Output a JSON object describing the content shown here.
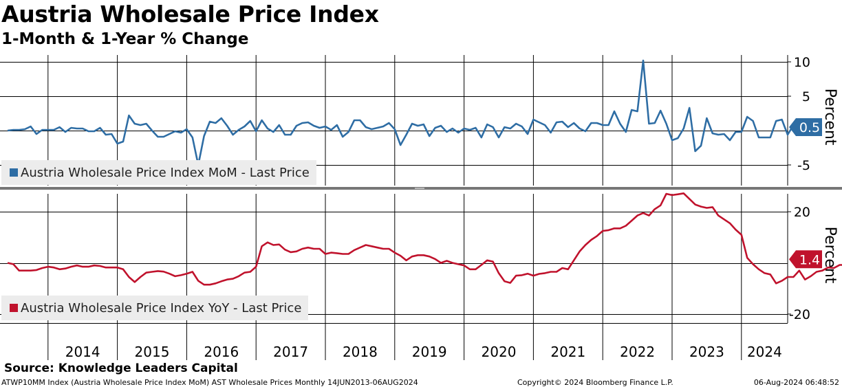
{
  "header": {
    "title": "Austria Wholesale Price Index",
    "subtitle": "1-Month & 1-Year % Change"
  },
  "footer": {
    "source": "Source: Knowledge Leaders Capital",
    "ticker_info": "ATWP10MM Index (Austria Wholesale Price Index MoM) AST Wholesale Prices  Monthly 14JUN2013-06AUG2024",
    "copyright": "Copyright© 2024 Bloomberg Finance L.P.",
    "timestamp": "06-Aug-2024 06:48:52"
  },
  "colors": {
    "mom": "#2e6da4",
    "yoy": "#c0122c",
    "legend_bg": "#ececec"
  },
  "chart_data": [
    {
      "type": "line",
      "name": "mom_panel",
      "series_name": "Austria Wholesale Price Index MoM - Last Price",
      "ylabel": "Percent",
      "ylim": [
        -8,
        11
      ],
      "yticks": [
        10,
        5,
        -5
      ],
      "last_value_label": "0.5",
      "start": "2013-06",
      "values": [
        0,
        0.1,
        0.1,
        0.2,
        0.6,
        -0.5,
        0.1,
        0.1,
        0.1,
        0.5,
        -0.2,
        0.4,
        0.3,
        0.3,
        -0.1,
        -0.1,
        0.4,
        -0.6,
        -0.5,
        -1.9,
        -1.6,
        2.2,
        1.0,
        0.8,
        1.0,
        0.0,
        -0.9,
        -0.9,
        -0.5,
        -0.1,
        -0.3,
        0.2,
        -1.0,
        -5.0,
        -0.8,
        1.3,
        1.1,
        1.8,
        0.7,
        -0.6,
        0.1,
        0.6,
        1.4,
        -0.1,
        1.5,
        0.3,
        -0.2,
        0.8,
        -0.6,
        -0.6,
        0.7,
        1.1,
        1.2,
        0.7,
        0.4,
        0.6,
        0.1,
        0.8,
        -0.9,
        -0.2,
        1.5,
        1.5,
        0.5,
        0.2,
        0.4,
        0.6,
        1.1,
        0.2,
        -2.1,
        -0.6,
        1.0,
        0.7,
        0.9,
        -0.8,
        0.4,
        0.7,
        -0.2,
        0.3,
        -0.3,
        0.3,
        0.1,
        0.4,
        -1.0,
        0.9,
        0.5,
        -1.0,
        0.5,
        0.3,
        1.0,
        0.6,
        -0.5,
        1.6,
        1.2,
        0.8,
        -0.3,
        1.2,
        1.3,
        0.5,
        1.1,
        0.3,
        -0.1,
        1.1,
        1.1,
        0.8,
        0.8,
        2.8,
        1.0,
        -0.2,
        3.0,
        2.8,
        10.2,
        1.0,
        1.1,
        2.9,
        1.0,
        -1.4,
        -1.1,
        0.3,
        3.3,
        -3.0,
        -2.2,
        1.8,
        -0.4,
        -0.6,
        -0.5,
        -1.4,
        -0.2,
        -0.2,
        2.0,
        1.4,
        -1.0,
        -1.0,
        -1.0,
        1.4,
        1.6,
        -0.6,
        0.8,
        -0.3,
        0.1,
        0.5
      ],
      "x_tick_labels": [
        "2014",
        "2015",
        "2016",
        "2017",
        "2018",
        "2019",
        "2020",
        "2021",
        "2022",
        "2023",
        "2024"
      ]
    },
    {
      "type": "line",
      "name": "yoy_panel",
      "series_name": "Austria Wholesale Price Index YoY - Last Price",
      "ylabel": "Percent",
      "ylim": [
        -23.5,
        27
      ],
      "yticks": [
        20,
        -20
      ],
      "last_value_label": "1.4",
      "start": "2013-06",
      "values": [
        0,
        -0.5,
        -3,
        -3,
        -3,
        -2.8,
        -2,
        -1.5,
        -1.8,
        -2.5,
        -2.2,
        -1.5,
        -1.0,
        -1.5,
        -1.5,
        -1.0,
        -1.2,
        -1.8,
        -1.8,
        -1.8,
        -2.5,
        -5.5,
        -7.5,
        -5.5,
        -3.8,
        -3.5,
        -3.2,
        -3.4,
        -4.2,
        -5.2,
        -4.8,
        -4.2,
        -3.5,
        -7,
        -8.5,
        -8.5,
        -8.0,
        -7.2,
        -6.5,
        -6.2,
        -5.2,
        -3.8,
        -3.5,
        -1.5,
        6.5,
        8.0,
        7.0,
        7.2,
        5.2,
        4.2,
        4.5,
        5.5,
        6.0,
        5.5,
        5.5,
        3.5,
        4.0,
        3.8,
        3.5,
        3.5,
        5.0,
        6.0,
        7.0,
        6.5,
        6.0,
        5.5,
        5.5,
        4.0,
        2.8,
        1.0,
        2.5,
        3.0,
        3.0,
        2.5,
        1.5,
        0.0,
        0.8,
        0.0,
        -0.5,
        -1.0,
        -2.5,
        -2.5,
        -0.8,
        1.0,
        0.5,
        -4.0,
        -7.2,
        -7.8,
        -5.0,
        -4.8,
        -4.2,
        -5.0,
        -4.3,
        -4.0,
        -3.5,
        -3.5,
        -2.0,
        -2.5,
        1.0,
        4.5,
        7.0,
        9.0,
        10.5,
        12.5,
        12.8,
        13.5,
        13.5,
        14.5,
        16.5,
        18.5,
        19.5,
        18.5,
        21.0,
        22.5,
        27.0,
        26.5,
        26.8,
        27.2,
        25.0,
        22.8,
        22.0,
        21.5,
        21.8,
        18.5,
        17.0,
        15.5,
        13.0,
        11.0,
        2.0,
        -0.5,
        -2.5,
        -4.0,
        -4.5,
        -8.0,
        -7.0,
        -5.5,
        -5.5,
        -3.0,
        -6.5,
        -5.2,
        -3.5,
        -3.0,
        -1.8,
        -2.0,
        -0.8,
        -0.8,
        0.0,
        1.0,
        1.2,
        1.0,
        1.4
      ]
    }
  ]
}
